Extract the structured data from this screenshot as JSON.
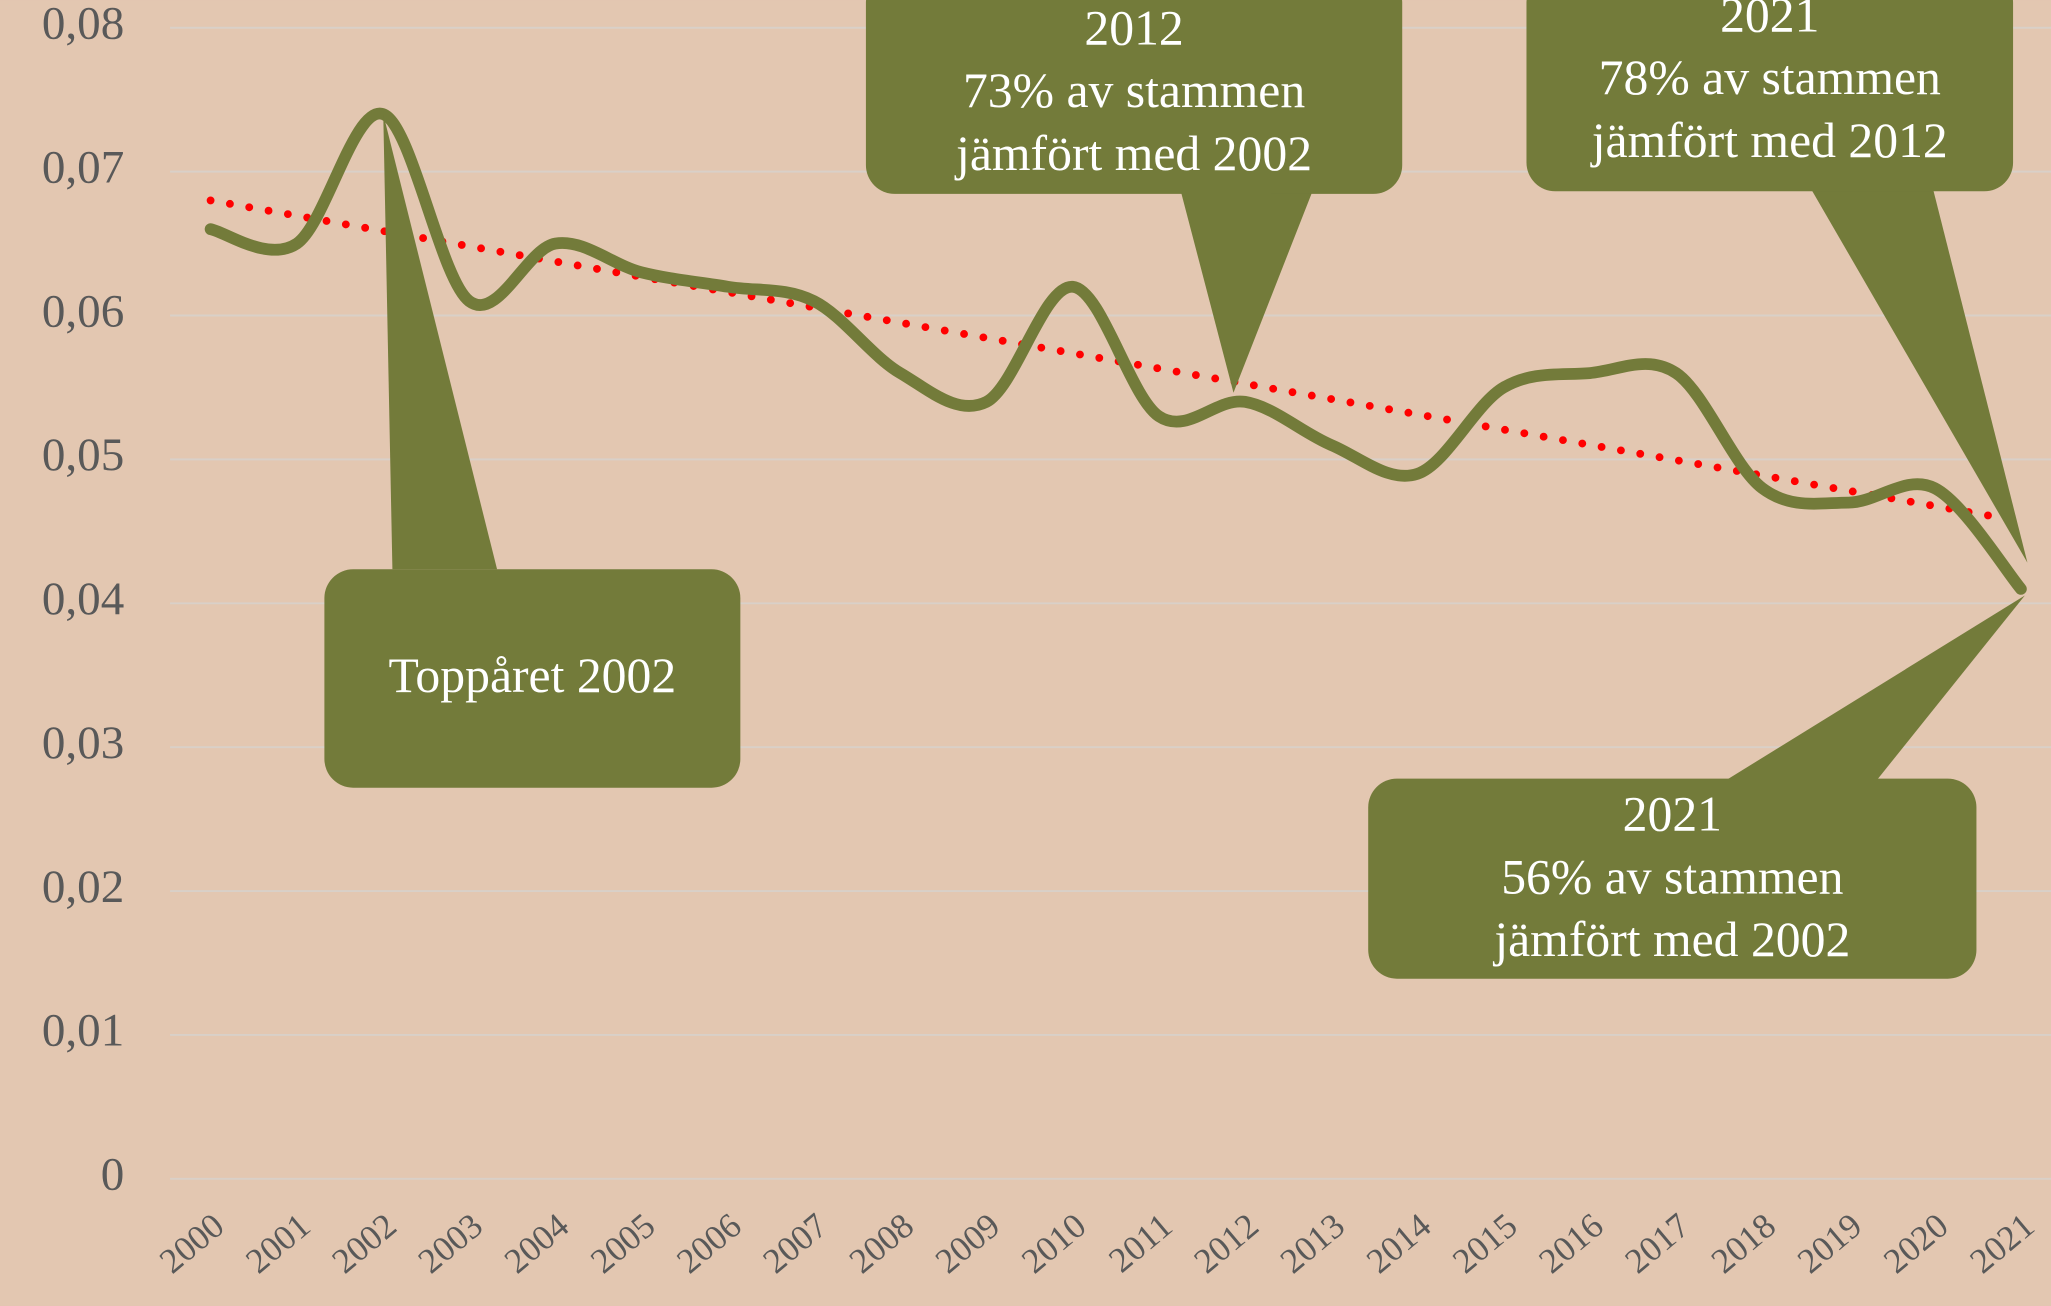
{
  "chart_data": {
    "type": "line",
    "categories": [
      "2000",
      "2001",
      "2002",
      "2003",
      "2004",
      "2005",
      "2006",
      "2007",
      "2008",
      "2009",
      "2010",
      "2011",
      "2012",
      "2013",
      "2014",
      "2015",
      "2016",
      "2017",
      "2018",
      "2019",
      "2020",
      "2021"
    ],
    "series": [
      {
        "color": "#737b3a",
        "values": [
          0.066,
          0.065,
          0.074,
          0.061,
          0.065,
          0.063,
          0.062,
          0.061,
          0.056,
          0.054,
          0.062,
          0.053,
          0.054,
          0.051,
          0.049,
          0.055,
          0.056,
          0.056,
          0.048,
          0.047,
          0.048,
          0.041
        ]
      }
    ],
    "trend": {
      "color": "#ff0000",
      "values": [
        0.068,
        0.0457
      ]
    },
    "ylim": [
      0,
      0.08
    ],
    "yticks": [
      0,
      {
        "value": 0.01,
        "label": "0,01"
      },
      {
        "value": 0.02,
        "label": "0,02"
      },
      {
        "value": 0.03,
        "label": "0,03"
      },
      {
        "value": 0.04,
        "label": "0,04"
      },
      {
        "value": 0.05,
        "label": "0,05"
      },
      {
        "value": 0.06,
        "label": "0,06"
      },
      {
        "value": 0.07,
        "label": "0,07"
      },
      {
        "value": 0.08,
        "label": "0,08"
      }
    ],
    "grid": true,
    "annotations": [
      {
        "lines": [
          "Toppåret 2002"
        ]
      },
      {
        "lines": [
          "2012",
          "73% av stammen",
          "jämfört med 2002"
        ]
      },
      {
        "lines": [
          "2021",
          "78% av stammen",
          "jämfört med 2012"
        ]
      },
      {
        "lines": [
          "2021",
          "56% av stammen",
          "jämfört med 2002"
        ]
      }
    ]
  }
}
